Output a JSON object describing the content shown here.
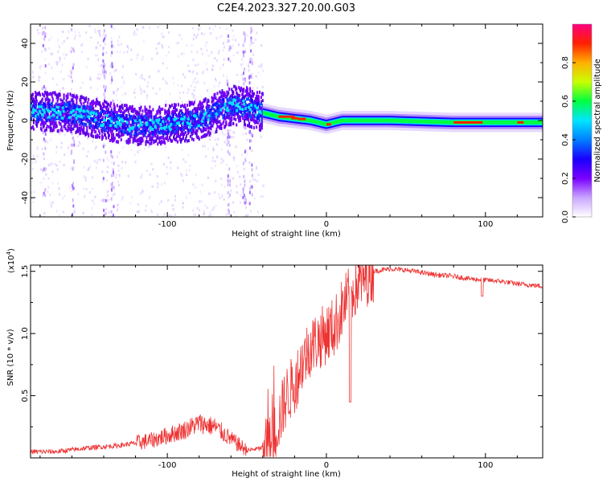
{
  "title": "C2E4.2023.327.20.00.G03",
  "chart_data": [
    {
      "type": "heatmap",
      "xlabel": "Height of straight line (km)",
      "ylabel": "Frequency (Hz)",
      "xlim": [
        -186,
        136
      ],
      "ylim": [
        -50,
        50
      ],
      "xticks": [
        -100,
        0,
        100
      ],
      "yticks": [
        40,
        20,
        0,
        -20,
        -40
      ],
      "colorbar": {
        "label": "Normalized spectral amplitude",
        "range": [
          0,
          1
        ],
        "ticks": [
          "0.0",
          "0.2",
          "0.4",
          "0.6",
          "0.8"
        ],
        "colors": [
          "#ffffff",
          "#c9a6ff",
          "#7a00ff",
          "#1a00ff",
          "#0080ff",
          "#00e5ff",
          "#00ff40",
          "#c8ff00",
          "#ffb000",
          "#ff2000",
          "#ff0080"
        ]
      },
      "ridge": {
        "x": [
          -186,
          -160,
          -140,
          -120,
          -100,
          -80,
          -60,
          -50,
          -40,
          -30,
          -20,
          -10,
          0,
          10,
          40,
          80,
          100,
          120,
          136
        ],
        "freq": [
          5,
          4,
          0,
          -3,
          -2,
          0,
          8,
          7,
          4,
          2,
          1,
          0,
          -2,
          0,
          0,
          -1,
          -1,
          -1,
          -1
        ]
      }
    },
    {
      "type": "line",
      "xlabel": "Height of straight line (km)",
      "ylabel": "SNR (10 * v/v)",
      "yscale_note": "(x10",
      "yscale_exp": "4",
      "xlim": [
        -186,
        136
      ],
      "ylim": [
        0,
        1.55
      ],
      "xticks": [
        -100,
        0,
        100
      ],
      "yticks": [
        "0.5",
        "1.0",
        "1.5"
      ],
      "color": "#ee3333",
      "series": [
        {
          "x": [
            -186,
            -170,
            -150,
            -130,
            -110,
            -100,
            -90,
            -80,
            -70,
            -60,
            -50,
            -40,
            -35,
            -30,
            -25,
            -20,
            -15,
            -10,
            -5,
            0,
            5,
            10,
            15,
            20,
            25,
            30,
            40,
            50,
            60,
            70,
            80,
            90,
            100,
            110,
            120,
            136
          ],
          "y": [
            0.05,
            0.05,
            0.08,
            0.1,
            0.14,
            0.18,
            0.22,
            0.28,
            0.25,
            0.15,
            0.06,
            0.08,
            0.1,
            0.3,
            0.5,
            0.6,
            0.78,
            0.9,
            0.95,
            1.0,
            1.05,
            1.2,
            1.32,
            1.4,
            1.46,
            1.5,
            1.52,
            1.51,
            1.49,
            1.47,
            1.46,
            1.44,
            1.43,
            1.42,
            1.4,
            1.38
          ]
        }
      ]
    }
  ]
}
